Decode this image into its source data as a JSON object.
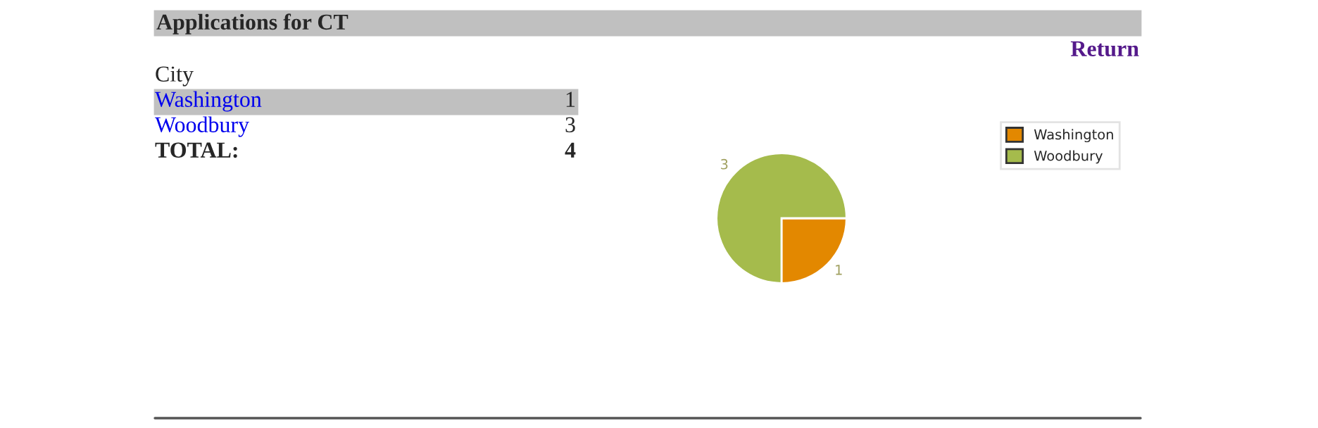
{
  "chart_data": {
    "type": "pie",
    "title": "Applications for CT",
    "categories": [
      "Washington",
      "Woodbury"
    ],
    "values": [
      1,
      3
    ],
    "colors": [
      "#e38800",
      "#a5bb4c"
    ],
    "data_labels": true,
    "legend": "right",
    "xlabel": "City",
    "annotations": [
      "Return",
      "1",
      "3",
      "TOTAL:",
      "4"
    ]
  }
}
